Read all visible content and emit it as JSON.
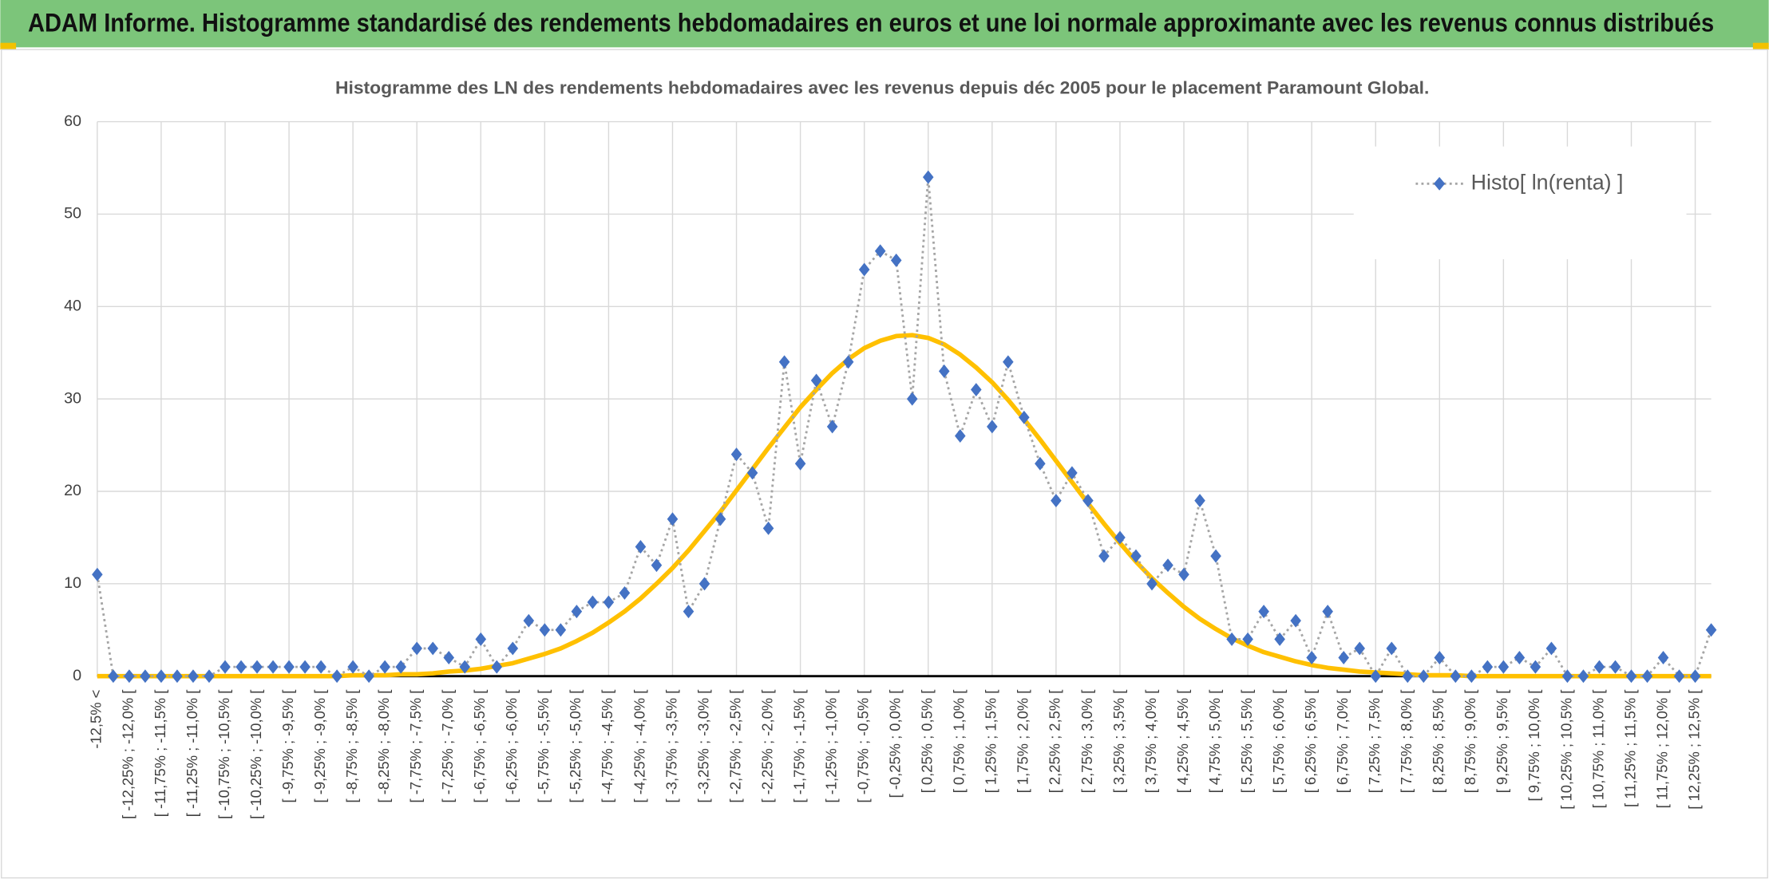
{
  "header": {
    "title": "ADAM Informe. Histogramme standardisé des rendements hebdomadaires en euros et une loi normale approximante avec les revenus connus distribués"
  },
  "chart_data": {
    "type": "line",
    "title": "Histogramme des LN des rendements hebdomadaires avec les revenus depuis déc 2005 pour le placement Paramount  Global.",
    "categories": [
      "-12,5% <",
      null,
      "[ -12,25% ; -12,0% [",
      null,
      "[ -11,75% ; -11,5% [",
      null,
      "[ -11,25% ; -11,0% [",
      null,
      "[ -10,75% ; -10,5% [",
      null,
      "[ -10,25% ; -10,0% [",
      null,
      "[ -9,75% ; -9,5% [",
      null,
      "[ -9,25% ; -9,0% [",
      null,
      "[ -8,75% ; -8,5% [",
      null,
      "[ -8,25% ; -8,0% [",
      null,
      "[ -7,75% ; -7,5% [",
      null,
      "[ -7,25% ; -7,0% [",
      null,
      "[ -6,75% ; -6,5% [",
      null,
      "[ -6,25% ; -6,0% [",
      null,
      "[ -5,75% ; -5,5% [",
      null,
      "[ -5,25% ; -5,0% [",
      null,
      "[ -4,75% ; -4,5% [",
      null,
      "[ -4,25% ; -4,0% [",
      null,
      "[ -3,75% ; -3,5% [",
      null,
      "[ -3,25% ; -3,0% [",
      null,
      "[ -2,75% ; -2,5% [",
      null,
      "[ -2,25% ; -2,0% [",
      null,
      "[ -1,75% ; -1,5% [",
      null,
      "[ -1,25% ; -1,0% [",
      null,
      "[ -0,75% ; -0,5% [",
      null,
      "[ -0,25% ; 0,0% [",
      null,
      "[ 0,25% ; 0,5% [",
      null,
      "[ 0,75% ; 1,0% [",
      null,
      "[ 1,25% ; 1,5% [",
      null,
      "[ 1,75% ; 2,0% [",
      null,
      "[ 2,25% ; 2,5% [",
      null,
      "[ 2,75% ; 3,0% [",
      null,
      "[ 3,25% ; 3,5% [",
      null,
      "[ 3,75% ; 4,0% [",
      null,
      "[ 4,25% ; 4,5% [",
      null,
      "[ 4,75% ; 5,0% [",
      null,
      "[ 5,25% ; 5,5% [",
      null,
      "[ 5,75% ; 6,0% [",
      null,
      "[ 6,25% ; 6,5% [",
      null,
      "[ 6,75% ; 7,0% [",
      null,
      "[ 7,25% ; 7,5% [",
      null,
      "[ 7,75% ; 8,0% [",
      null,
      "[ 8,25% ; 8,5% [",
      null,
      "[ 8,75% ; 9,0% [",
      null,
      "[ 9,25% ; 9,5% [",
      null,
      "[ 9,75% ; 10,0% [",
      null,
      "[ 10,25% ; 10,5% [",
      null,
      "[ 10,75% ; 11,0% [",
      null,
      "[ 11,25% ; 11,5% [",
      null,
      "[ 11,75% ; 12,0% [",
      null,
      "[ 12,25% ; 12,5% [",
      null
    ],
    "series": [
      {
        "name": "Histo[ ln(renta) ]",
        "color": "#4472c4",
        "line_color": "#a5a5a5",
        "values": [
          11,
          0,
          0,
          0,
          0,
          0,
          0,
          0,
          1,
          1,
          1,
          1,
          1,
          1,
          1,
          0,
          1,
          0,
          1,
          1,
          3,
          3,
          2,
          1,
          4,
          1,
          3,
          6,
          5,
          5,
          7,
          8,
          8,
          9,
          14,
          12,
          17,
          7,
          10,
          17,
          24,
          22,
          16,
          34,
          23,
          32,
          27,
          34,
          44,
          46,
          45,
          30,
          54,
          33,
          26,
          31,
          27,
          34,
          28,
          23,
          19,
          22,
          19,
          13,
          15,
          13,
          10,
          12,
          11,
          19,
          13,
          4,
          4,
          7,
          4,
          6,
          2,
          7,
          2,
          3,
          0,
          3,
          0,
          0,
          2,
          0,
          0,
          1,
          1,
          2,
          1,
          3,
          0,
          0,
          1,
          1,
          0,
          0,
          2,
          0,
          0,
          5
        ]
      },
      {
        "color": "#ffc000",
        "values": [
          0,
          0,
          0,
          0,
          0,
          0,
          0,
          0,
          0,
          0,
          0,
          0,
          0,
          0,
          0,
          0,
          0.1,
          0.1,
          0.1,
          0.2,
          0.2,
          0.3,
          0.5,
          0.6,
          0.8,
          1.1,
          1.4,
          1.9,
          2.4,
          3.0,
          3.8,
          4.7,
          5.8,
          7.0,
          8.4,
          10.0,
          11.7,
          13.6,
          15.7,
          17.8,
          20.1,
          22.4,
          24.7,
          26.9,
          29.1,
          31.0,
          32.8,
          34.3,
          35.5,
          36.3,
          36.8,
          36.9,
          36.6,
          35.9,
          34.8,
          33.4,
          31.8,
          29.9,
          27.8,
          25.6,
          23.3,
          21.0,
          18.7,
          16.5,
          14.4,
          12.4,
          10.6,
          9.0,
          7.5,
          6.2,
          5.1,
          4.1,
          3.3,
          2.6,
          2.1,
          1.6,
          1.2,
          0.9,
          0.7,
          0.5,
          0.4,
          0.3,
          0.2,
          0.1,
          0.1,
          0.1,
          0,
          0,
          0,
          0,
          0,
          0,
          0,
          0,
          0,
          0,
          0,
          0,
          0,
          0,
          0,
          0
        ]
      }
    ],
    "ylim": [
      0,
      60
    ],
    "yticks": [
      0,
      10,
      20,
      30,
      40,
      50,
      60
    ],
    "grid": true,
    "legend": "upper right"
  }
}
